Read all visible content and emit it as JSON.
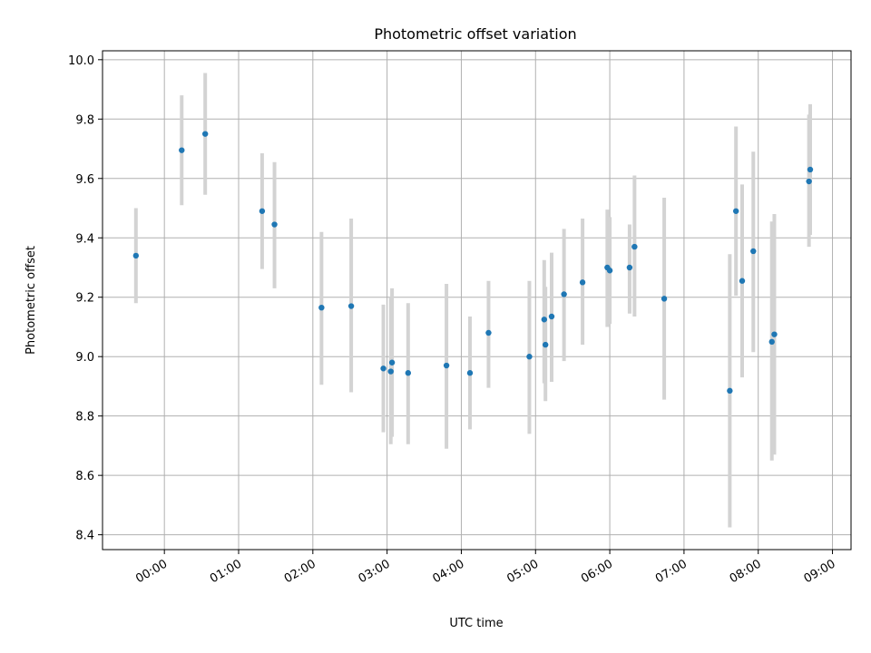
{
  "chart_data": {
    "type": "scatter",
    "title": "Photometric offset variation",
    "xlabel": "UTC time",
    "ylabel": "Photometric offset",
    "xlim": [
      "-0:50",
      "9:15"
    ],
    "ylim": [
      8.35,
      10.03
    ],
    "x_ticks": [
      "00:00",
      "01:00",
      "02:00",
      "03:00",
      "04:00",
      "05:00",
      "06:00",
      "07:00",
      "08:00",
      "09:00"
    ],
    "y_ticks": [
      "8.4",
      "8.6",
      "8.8",
      "9.0",
      "9.2",
      "9.4",
      "9.6",
      "9.8",
      "10.0"
    ],
    "grid": true,
    "point_color": "#1f77b4",
    "errorbar_color": "#d3d3d3",
    "series": [
      {
        "points": [
          {
            "x": "-0:23",
            "y": 9.34,
            "ylo": 9.18,
            "yhi": 9.5
          },
          {
            "x": "0:14",
            "y": 9.695,
            "ylo": 9.51,
            "yhi": 9.88
          },
          {
            "x": "0:33",
            "y": 9.75,
            "ylo": 9.545,
            "yhi": 9.955
          },
          {
            "x": "1:19",
            "y": 9.49,
            "ylo": 9.295,
            "yhi": 9.685
          },
          {
            "x": "1:29",
            "y": 9.445,
            "ylo": 9.23,
            "yhi": 9.655
          },
          {
            "x": "2:07",
            "y": 9.165,
            "ylo": 8.905,
            "yhi": 9.42
          },
          {
            "x": "2:31",
            "y": 9.17,
            "ylo": 8.88,
            "yhi": 9.465
          },
          {
            "x": "2:57",
            "y": 8.96,
            "ylo": 8.745,
            "yhi": 9.175
          },
          {
            "x": "3:03",
            "y": 8.95,
            "ylo": 8.705,
            "yhi": 9.2
          },
          {
            "x": "3:04",
            "y": 8.98,
            "ylo": 8.73,
            "yhi": 9.23
          },
          {
            "x": "3:17",
            "y": 8.945,
            "ylo": 8.705,
            "yhi": 9.18
          },
          {
            "x": "3:48",
            "y": 8.97,
            "ylo": 8.69,
            "yhi": 9.245
          },
          {
            "x": "4:07",
            "y": 8.945,
            "ylo": 8.755,
            "yhi": 9.135
          },
          {
            "x": "4:22",
            "y": 9.08,
            "ylo": 8.895,
            "yhi": 9.255
          },
          {
            "x": "4:55",
            "y": 9.0,
            "ylo": 8.74,
            "yhi": 9.255
          },
          {
            "x": "5:07",
            "y": 9.125,
            "ylo": 8.91,
            "yhi": 9.325
          },
          {
            "x": "5:08",
            "y": 9.04,
            "ylo": 8.85,
            "yhi": 9.235
          },
          {
            "x": "5:13",
            "y": 9.135,
            "ylo": 8.915,
            "yhi": 9.35
          },
          {
            "x": "5:23",
            "y": 9.21,
            "ylo": 8.985,
            "yhi": 9.43
          },
          {
            "x": "5:38",
            "y": 9.25,
            "ylo": 9.04,
            "yhi": 9.465
          },
          {
            "x": "5:58",
            "y": 9.3,
            "ylo": 9.1,
            "yhi": 9.495
          },
          {
            "x": "6:00",
            "y": 9.29,
            "ylo": 9.11,
            "yhi": 9.47
          },
          {
            "x": "6:16",
            "y": 9.3,
            "ylo": 9.145,
            "yhi": 9.445
          },
          {
            "x": "6:20",
            "y": 9.37,
            "ylo": 9.135,
            "yhi": 9.61
          },
          {
            "x": "6:44",
            "y": 9.195,
            "ylo": 8.855,
            "yhi": 9.535
          },
          {
            "x": "7:37",
            "y": 8.885,
            "ylo": 8.425,
            "yhi": 9.345
          },
          {
            "x": "7:42",
            "y": 9.49,
            "ylo": 9.205,
            "yhi": 9.775
          },
          {
            "x": "7:47",
            "y": 9.255,
            "ylo": 8.93,
            "yhi": 9.58
          },
          {
            "x": "7:56",
            "y": 9.355,
            "ylo": 9.015,
            "yhi": 9.69
          },
          {
            "x": "8:11",
            "y": 9.05,
            "ylo": 8.65,
            "yhi": 9.455
          },
          {
            "x": "8:13",
            "y": 9.075,
            "ylo": 8.67,
            "yhi": 9.48
          },
          {
            "x": "8:41",
            "y": 9.59,
            "ylo": 9.37,
            "yhi": 9.815
          },
          {
            "x": "8:42",
            "y": 9.63,
            "ylo": 9.41,
            "yhi": 9.85
          }
        ]
      }
    ]
  }
}
